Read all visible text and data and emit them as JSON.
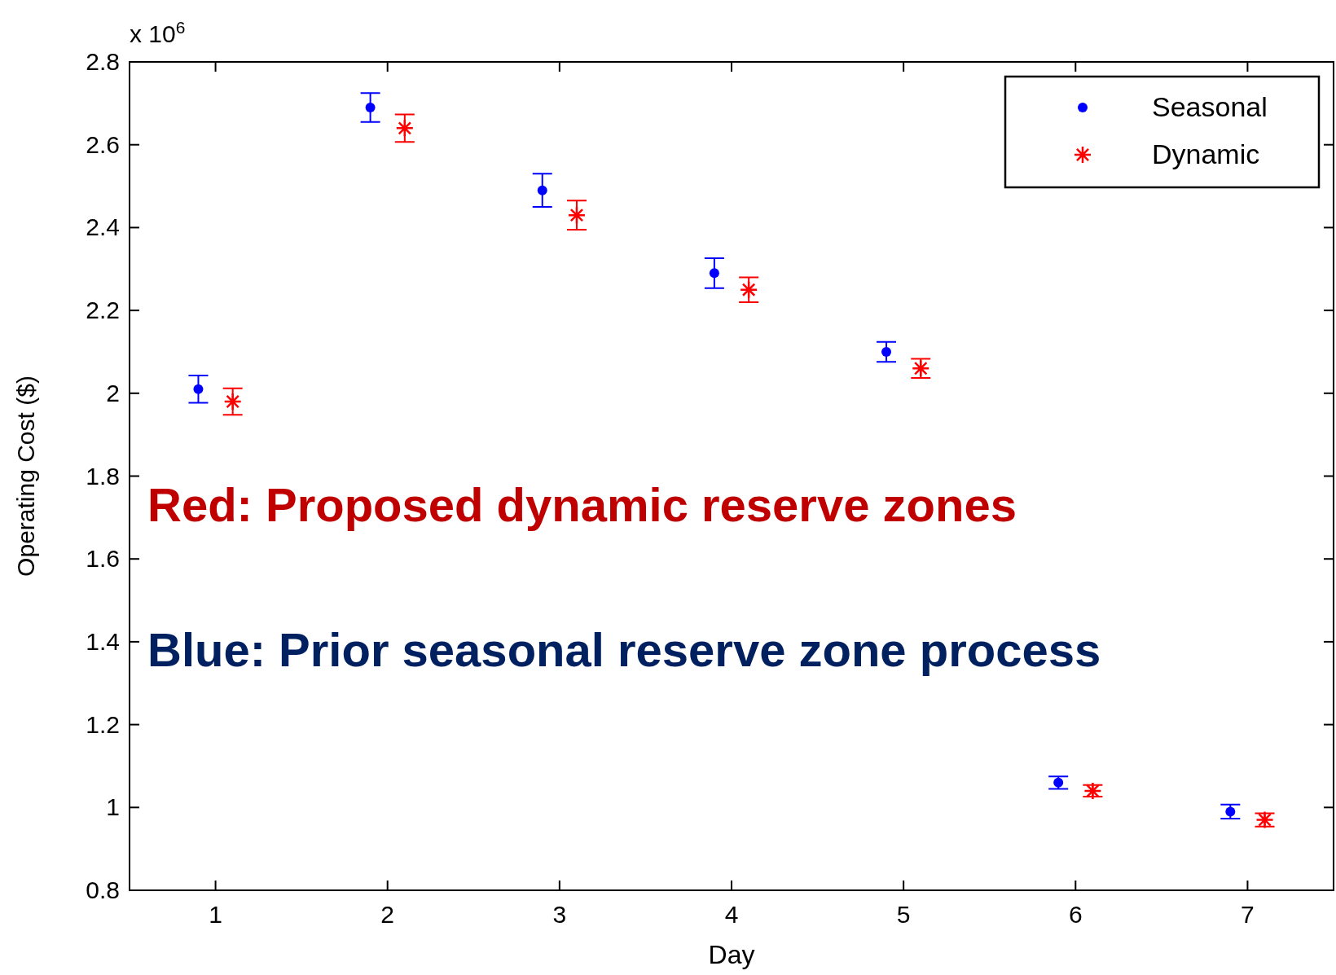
{
  "chart_data": {
    "type": "scatter",
    "xlabel": "Day",
    "ylabel": "Operating Cost ($)",
    "xlim": [
      0.5,
      7.5
    ],
    "xticks": [
      1,
      2,
      3,
      4,
      5,
      6,
      7
    ],
    "ylim": [
      0.8,
      2.8
    ],
    "yticks": [
      0.8,
      1,
      1.2,
      1.4,
      1.6,
      1.8,
      2,
      2.2,
      2.4,
      2.6,
      2.8
    ],
    "grid": false,
    "legend": "top right",
    "series": [
      {
        "name": "Seasonal",
        "color": "#0000ff",
        "marker": "circle",
        "x": [
          0.9,
          1.9,
          2.9,
          3.9,
          4.9,
          5.9,
          6.9
        ],
        "values": [
          2.01,
          2.69,
          2.49,
          2.29,
          2.1,
          1.06,
          0.99
        ],
        "errors": [
          0.033,
          0.035,
          0.04,
          0.036,
          0.024,
          0.015,
          0.017
        ]
      },
      {
        "name": "Dynamic",
        "color": "#ff0000",
        "marker": "cross",
        "x": [
          1.1,
          2.1,
          3.1,
          4.1,
          5.1,
          6.1,
          7.1
        ],
        "values": [
          1.98,
          2.64,
          2.43,
          2.25,
          2.06,
          1.04,
          0.97
        ],
        "errors": [
          0.032,
          0.033,
          0.035,
          0.03,
          0.023,
          0.014,
          0.016
        ]
      }
    ],
    "annotations": [
      "x 10$^{6}$",
      "Red: Proposed dynamic reserve zones",
      "Blue: Prior seasonal reserve zone process"
    ]
  }
}
